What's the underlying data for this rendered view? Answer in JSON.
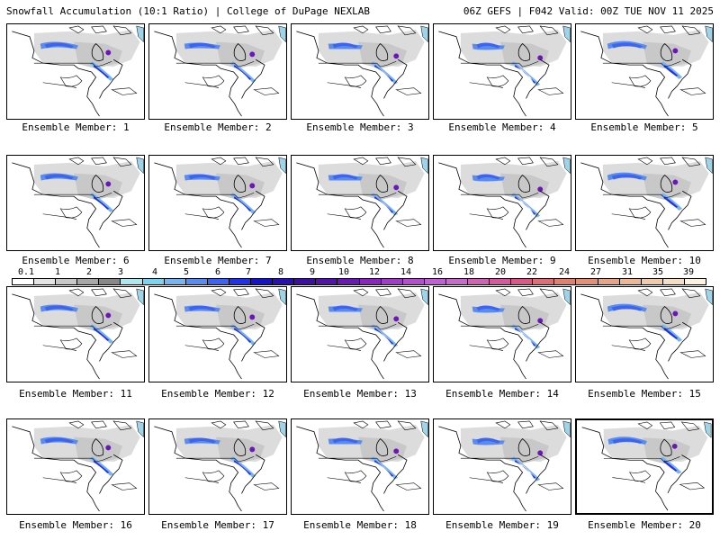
{
  "header": {
    "title": "Snowfall Accumulation (10:1 Ratio) | College of DuPage NEXLAB",
    "run_info": "06Z GEFS | F042 Valid: 00Z TUE NOV 11 2025"
  },
  "members": [
    {
      "label": "Ensemble Member: 1"
    },
    {
      "label": "Ensemble Member: 2"
    },
    {
      "label": "Ensemble Member: 3"
    },
    {
      "label": "Ensemble Member: 4"
    },
    {
      "label": "Ensemble Member: 5"
    },
    {
      "label": "Ensemble Member: 6"
    },
    {
      "label": "Ensemble Member: 7"
    },
    {
      "label": "Ensemble Member: 8"
    },
    {
      "label": "Ensemble Member: 9"
    },
    {
      "label": "Ensemble Member: 10"
    },
    {
      "label": "Ensemble Member: 11"
    },
    {
      "label": "Ensemble Member: 12"
    },
    {
      "label": "Ensemble Member: 13"
    },
    {
      "label": "Ensemble Member: 14"
    },
    {
      "label": "Ensemble Member: 15"
    },
    {
      "label": "Ensemble Member: 16"
    },
    {
      "label": "Ensemble Member: 17"
    },
    {
      "label": "Ensemble Member: 18"
    },
    {
      "label": "Ensemble Member: 19"
    },
    {
      "label": "Ensemble Member: 20"
    }
  ],
  "selected_member": 20,
  "colorbar": {
    "ticks": [
      "0.1",
      "1",
      "2",
      "3",
      "4",
      "5",
      "6",
      "7",
      "8",
      "9",
      "10",
      "12",
      "14",
      "16",
      "18",
      "20",
      "22",
      "24",
      "27",
      "31",
      "35",
      "39"
    ],
    "colors": [
      "#ffffff",
      "#e4e4e4",
      "#c8c8c8",
      "#a8a8a8",
      "#888888",
      "#aee8ee",
      "#7ad4ee",
      "#78b4f0",
      "#5a8cf0",
      "#3c64f0",
      "#2232e8",
      "#1414c8",
      "#2a10b0",
      "#3c10a0",
      "#5214a8",
      "#6a18b4",
      "#8c24c0",
      "#a23cc8",
      "#b450d0",
      "#c060d4",
      "#c86ccc",
      "#d064b4",
      "#d45aa0",
      "#d85888",
      "#dc6e78",
      "#e08070",
      "#e49078",
      "#e8a488",
      "#ecb898",
      "#f0caac",
      "#f6dec4",
      "#fcf2e0"
    ]
  }
}
